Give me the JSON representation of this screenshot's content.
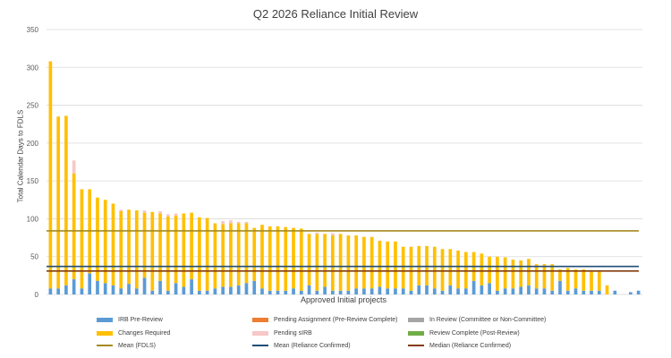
{
  "chart_data": {
    "type": "bar",
    "stacked": true,
    "title": "Q2 2026 Reliance Initial Review",
    "xlabel": "Approved Initial projects",
    "ylabel": "Total Calendar Days to FDLS",
    "ylim": [
      0,
      350
    ],
    "yticks": [
      0,
      50,
      100,
      150,
      200,
      250,
      300,
      350
    ],
    "grid": "horizontal",
    "legend_position": "bottom",
    "bar_count": 76,
    "series": [
      {
        "name": "IRB Pre-Review",
        "color": "#5B9BD5",
        "values": [
          8,
          8,
          12,
          20,
          8,
          28,
          18,
          15,
          12,
          8,
          14,
          8,
          22,
          5,
          18,
          5,
          15,
          10,
          20,
          5,
          5,
          8,
          10,
          10,
          12,
          15,
          18,
          8,
          5,
          5,
          5,
          8,
          5,
          12,
          5,
          10,
          5,
          5,
          5,
          8,
          8,
          8,
          10,
          8,
          8,
          8,
          5,
          12,
          12,
          8,
          5,
          12,
          8,
          8,
          18,
          12,
          15,
          5,
          8,
          8,
          10,
          12,
          8,
          8,
          5,
          18,
          5,
          8,
          5,
          5,
          5,
          0,
          5,
          0,
          3,
          5
        ]
      },
      {
        "name": "Pending Assignment (Pre-Review Complete)",
        "color": "#ED7D31",
        "values": [
          0,
          0,
          0,
          0,
          0,
          0,
          0,
          0,
          0,
          0,
          0,
          0,
          0,
          0,
          0,
          0,
          0,
          0,
          0,
          0,
          0,
          0,
          0,
          0,
          0,
          0,
          0,
          0,
          0,
          0,
          0,
          0,
          0,
          0,
          0,
          0,
          0,
          0,
          0,
          0,
          0,
          0,
          0,
          0,
          0,
          0,
          0,
          0,
          0,
          0,
          0,
          0,
          0,
          0,
          0,
          0,
          0,
          0,
          0,
          0,
          0,
          0,
          0,
          0,
          0,
          0,
          0,
          0,
          0,
          0,
          0,
          0,
          0,
          0,
          0,
          0
        ]
      },
      {
        "name": "In Review (Committee or Non-Committee)",
        "color": "#A5A5A5",
        "values": [
          0,
          0,
          0,
          0,
          0,
          0,
          0,
          0,
          0,
          0,
          0,
          0,
          0,
          0,
          0,
          0,
          0,
          0,
          0,
          0,
          0,
          0,
          0,
          0,
          0,
          0,
          0,
          0,
          0,
          0,
          0,
          0,
          0,
          0,
          0,
          0,
          0,
          0,
          0,
          0,
          0,
          0,
          0,
          0,
          0,
          0,
          0,
          0,
          0,
          0,
          0,
          0,
          0,
          0,
          0,
          0,
          0,
          0,
          0,
          0,
          0,
          0,
          0,
          0,
          0,
          0,
          0,
          0,
          0,
          0,
          0,
          0,
          0,
          0,
          0,
          0
        ]
      },
      {
        "name": "Changes Required",
        "color": "#FFC000",
        "values": [
          300,
          227,
          224,
          140,
          131,
          111,
          110,
          110,
          108,
          102,
          98,
          103,
          86,
          104,
          89,
          98,
          89,
          97,
          88,
          97,
          96,
          86,
          83,
          84,
          82,
          79,
          70,
          84,
          85,
          85,
          84,
          80,
          82,
          68,
          75,
          70,
          73,
          75,
          73,
          70,
          68,
          68,
          61,
          62,
          62,
          55,
          58,
          52,
          52,
          55,
          55,
          48,
          50,
          48,
          38,
          42,
          35,
          45,
          41,
          38,
          35,
          35,
          32,
          32,
          35,
          15,
          30,
          25,
          28,
          25,
          25,
          12,
          0,
          0,
          0,
          0
        ]
      },
      {
        "name": "Pending sIRB",
        "color": "#F8C7C7",
        "values": [
          0,
          0,
          0,
          17,
          0,
          0,
          0,
          0,
          0,
          2,
          0,
          0,
          3,
          0,
          3,
          3,
          3,
          0,
          0,
          0,
          0,
          0,
          4,
          4,
          2,
          2,
          0,
          0,
          0,
          0,
          0,
          0,
          0,
          0,
          2,
          0,
          3,
          0,
          0,
          0,
          0,
          0,
          0,
          0,
          0,
          0,
          0,
          0,
          0,
          0,
          0,
          0,
          0,
          0,
          0,
          0,
          0,
          0,
          0,
          0,
          0,
          0,
          0,
          0,
          0,
          0,
          0,
          0,
          0,
          0,
          0,
          0,
          0,
          0,
          0,
          0
        ]
      },
      {
        "name": "Review Complete (Post-Review)",
        "color": "#70AD47",
        "values": [
          0,
          0,
          0,
          0,
          0,
          0,
          0,
          0,
          0,
          0,
          0,
          0,
          0,
          0,
          0,
          0,
          0,
          0,
          0,
          0,
          0,
          0,
          0,
          0,
          0,
          0,
          0,
          0,
          0,
          0,
          0,
          0,
          0,
          0,
          0,
          0,
          0,
          0,
          0,
          0,
          0,
          0,
          0,
          0,
          0,
          0,
          0,
          0,
          0,
          0,
          0,
          0,
          0,
          0,
          0,
          0,
          0,
          0,
          0,
          0,
          0,
          0,
          0,
          0,
          0,
          0,
          0,
          0,
          0,
          0,
          0,
          0,
          0,
          0,
          0,
          0
        ]
      }
    ],
    "reference_lines": [
      {
        "name": "Mean (FDLS)",
        "color": "#A68A1F",
        "value": 84
      },
      {
        "name": "Mean (Reliance Confirmed)",
        "color": "#1F4E79",
        "value": 37
      },
      {
        "name": "Median (Reliance Confirmed)",
        "color": "#843C0C",
        "value": 31
      }
    ],
    "legend": [
      {
        "label": "IRB Pre-Review",
        "kind": "box",
        "color": "#5B9BD5"
      },
      {
        "label": "Pending Assignment (Pre-Review Complete)",
        "kind": "box",
        "color": "#ED7D31"
      },
      {
        "label": "In Review (Committee or Non-Committee)",
        "kind": "box",
        "color": "#A5A5A5"
      },
      {
        "label": "Changes Required",
        "kind": "box",
        "color": "#FFC000"
      },
      {
        "label": "Pending sIRB",
        "kind": "box",
        "color": "#F8C7C7"
      },
      {
        "label": "Review Complete (Post-Review)",
        "kind": "box",
        "color": "#70AD47"
      },
      {
        "label": "Mean (FDLS)",
        "kind": "line",
        "color": "#A68A1F"
      },
      {
        "label": "Mean (Reliance Confirmed)",
        "kind": "line",
        "color": "#1F4E79"
      },
      {
        "label": "Median (Reliance Confirmed)",
        "kind": "line",
        "color": "#843C0C"
      }
    ]
  }
}
